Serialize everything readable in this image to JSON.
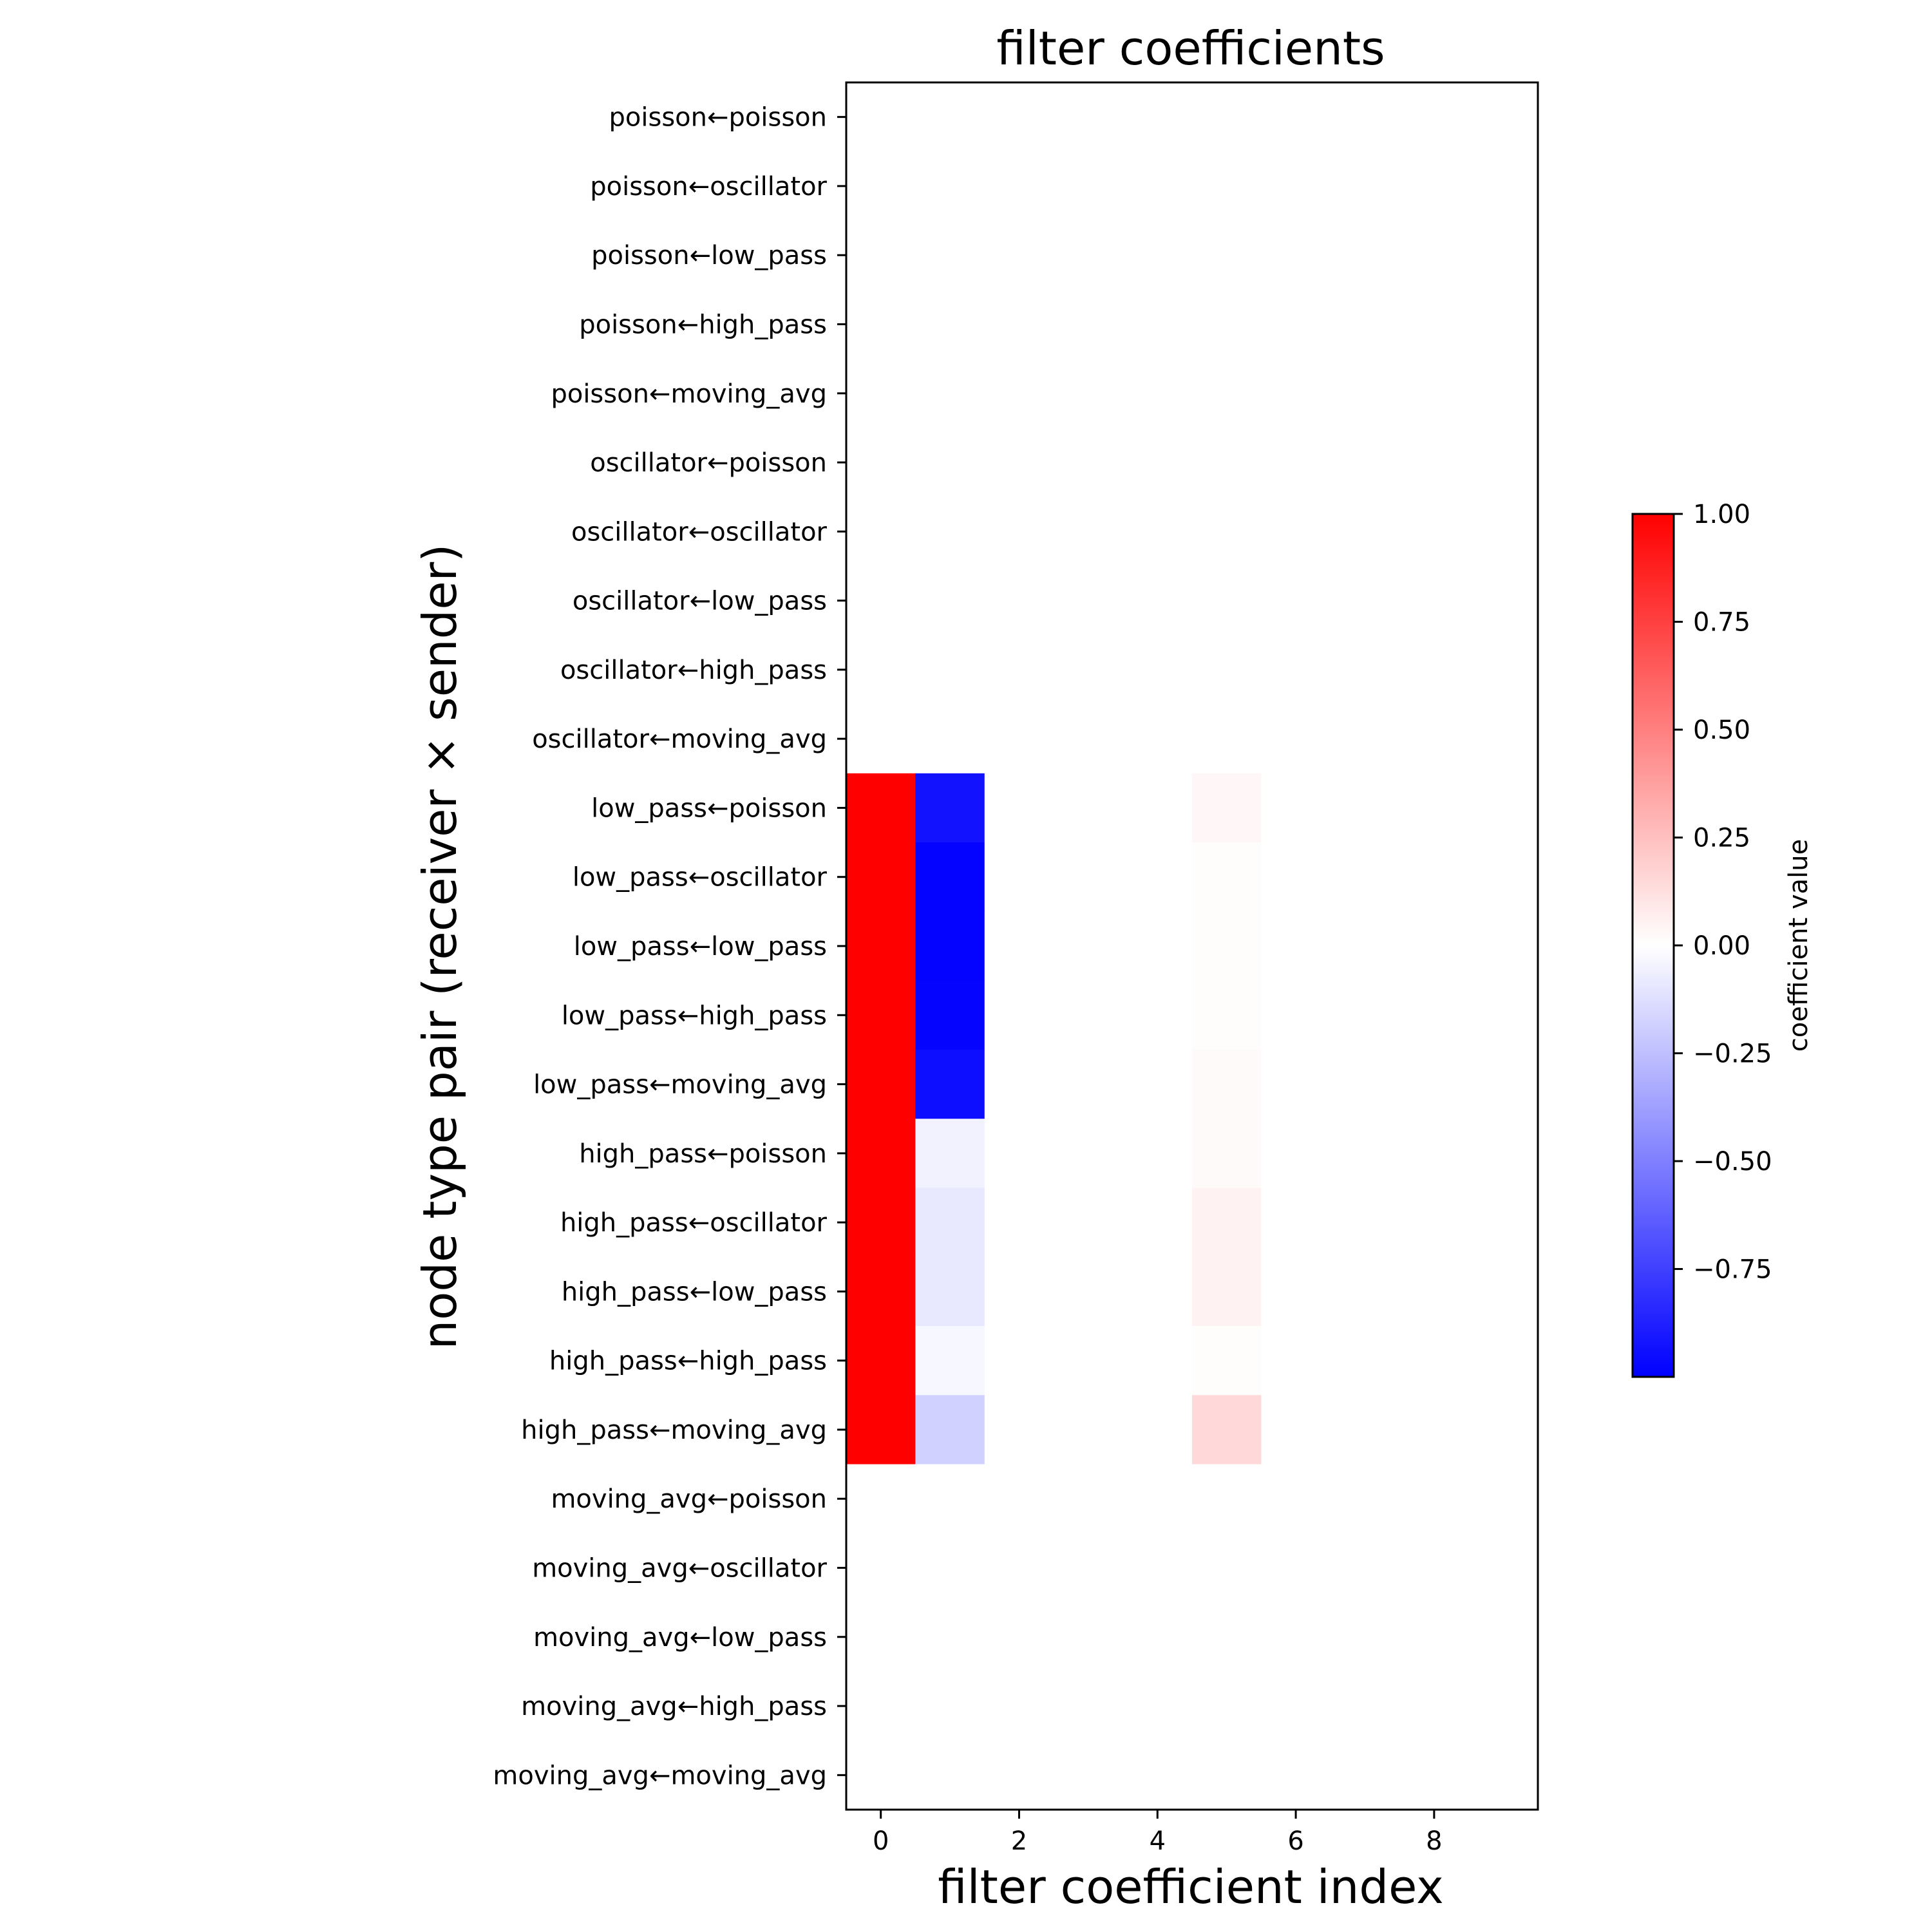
{
  "chart_data": {
    "type": "heatmap",
    "title": "filter coefficients",
    "xlabel": "filter coefficient index",
    "ylabel": "node type pair (receiver × sender)",
    "x_ticks": [
      0,
      2,
      4,
      6,
      8
    ],
    "x_range": [
      -0.5,
      9.5
    ],
    "rows": [
      "poisson←poisson",
      "poisson←oscillator",
      "poisson←low_pass",
      "poisson←high_pass",
      "poisson←moving_avg",
      "oscillator←poisson",
      "oscillator←oscillator",
      "oscillator←low_pass",
      "oscillator←high_pass",
      "oscillator←moving_avg",
      "low_pass←poisson",
      "low_pass←oscillator",
      "low_pass←low_pass",
      "low_pass←high_pass",
      "low_pass←moving_avg",
      "high_pass←poisson",
      "high_pass←oscillator",
      "high_pass←low_pass",
      "high_pass←high_pass",
      "high_pass←moving_avg",
      "moving_avg←poisson",
      "moving_avg←oscillator",
      "moving_avg←low_pass",
      "moving_avg←high_pass",
      "moving_avg←moving_avg"
    ],
    "values": [
      [
        0,
        0,
        0,
        0,
        0,
        0,
        0,
        0,
        0,
        0
      ],
      [
        0,
        0,
        0,
        0,
        0,
        0,
        0,
        0,
        0,
        0
      ],
      [
        0,
        0,
        0,
        0,
        0,
        0,
        0,
        0,
        0,
        0
      ],
      [
        0,
        0,
        0,
        0,
        0,
        0,
        0,
        0,
        0,
        0
      ],
      [
        0,
        0,
        0,
        0,
        0,
        0,
        0,
        0,
        0,
        0
      ],
      [
        0,
        0,
        0,
        0,
        0,
        0,
        0,
        0,
        0,
        0
      ],
      [
        0,
        0,
        0,
        0,
        0,
        0,
        0,
        0,
        0,
        0
      ],
      [
        0,
        0,
        0,
        0,
        0,
        0,
        0,
        0,
        0,
        0
      ],
      [
        0,
        0,
        0,
        0,
        0,
        0,
        0,
        0,
        0,
        0
      ],
      [
        0,
        0,
        0,
        0,
        0,
        0,
        0,
        0,
        0,
        0
      ],
      [
        1.0,
        -0.93,
        0,
        0,
        0,
        0.03,
        0,
        0,
        0,
        0
      ],
      [
        1.0,
        -0.99,
        0,
        0,
        0,
        0.01,
        0,
        0,
        0,
        0
      ],
      [
        1.0,
        -0.99,
        0,
        0,
        0,
        0.01,
        0,
        0,
        0,
        0
      ],
      [
        1.0,
        -0.98,
        0,
        0,
        0,
        0.01,
        0,
        0,
        0,
        0
      ],
      [
        1.0,
        -0.95,
        0,
        0,
        0,
        0.02,
        0,
        0,
        0,
        0
      ],
      [
        1.0,
        -0.05,
        0,
        0,
        0,
        0.02,
        0,
        0,
        0,
        0
      ],
      [
        1.0,
        -0.09,
        0,
        0,
        0,
        0.05,
        0,
        0,
        0,
        0
      ],
      [
        1.0,
        -0.09,
        0,
        0,
        0,
        0.05,
        0,
        0,
        0,
        0
      ],
      [
        1.0,
        -0.03,
        0,
        0,
        0,
        0.01,
        0,
        0,
        0,
        0
      ],
      [
        1.0,
        -0.18,
        0,
        0,
        0,
        0.15,
        0,
        0,
        0,
        0
      ],
      [
        0,
        0,
        0,
        0,
        0,
        0,
        0,
        0,
        0,
        0
      ],
      [
        0,
        0,
        0,
        0,
        0,
        0,
        0,
        0,
        0,
        0
      ],
      [
        0,
        0,
        0,
        0,
        0,
        0,
        0,
        0,
        0,
        0
      ],
      [
        0,
        0,
        0,
        0,
        0,
        0,
        0,
        0,
        0,
        0
      ],
      [
        0,
        0,
        0,
        0,
        0,
        0,
        0,
        0,
        0,
        0
      ]
    ],
    "colormap": {
      "name": "bwr",
      "min_color": "#0000ff",
      "mid_color": "#ffffff",
      "max_color": "#ff0000"
    },
    "colorbar": {
      "label": "coefficient value",
      "vmin": -1.0,
      "vmax": 1.0,
      "ticks": [
        1.0,
        0.75,
        0.5,
        0.25,
        0.0,
        -0.25,
        -0.5,
        -0.75
      ],
      "tick_labels": [
        "1.00",
        "0.75",
        "0.50",
        "0.25",
        "0.00",
        "−0.25",
        "−0.50",
        "−0.75"
      ]
    },
    "grid": false
  }
}
